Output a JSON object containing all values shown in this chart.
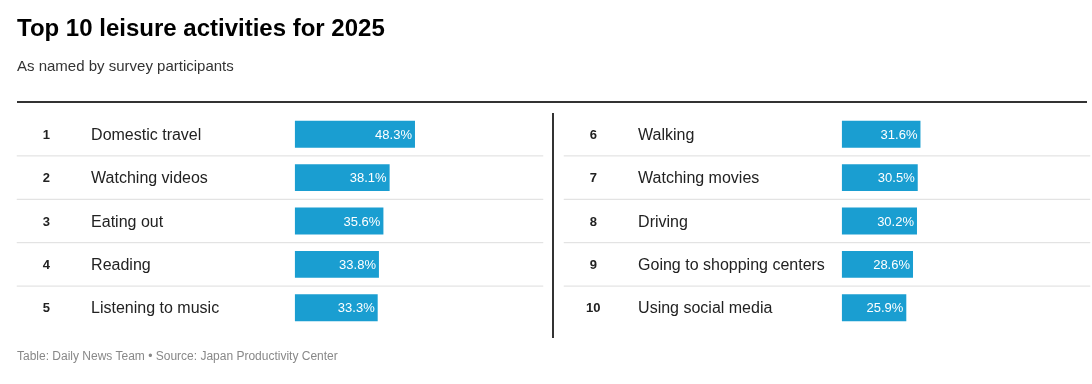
{
  "chart_data": [
    {
      "type": "bar",
      "orientation": "horizontal",
      "title": "Top 10 leisure activities for 2025",
      "subtitle": "As named by survey participants",
      "categories": [
        "Domestic travel",
        "Watching videos",
        "Eating out",
        "Reading",
        "Listening to music"
      ],
      "values": [
        48.3,
        38.1,
        35.6,
        33.8,
        33.3
      ],
      "color": "#1a9ed1",
      "value_labels": [
        "48.3%",
        "38.1%",
        "35.6%",
        "33.8%",
        "33.3%"
      ],
      "xlim": [
        0,
        100
      ],
      "tick_labels": false,
      "grid": false,
      "annotations": [
        "1",
        "2",
        "3",
        "4",
        "5"
      ]
    },
    {
      "type": "bar",
      "orientation": "horizontal",
      "categories": [
        "Walking",
        "Watching movies",
        "Driving",
        "Going to shopping centers",
        "Using social media"
      ],
      "values": [
        31.6,
        30.5,
        30.2,
        28.6,
        25.9
      ],
      "color": "#1a9ed1",
      "value_labels": [
        "31.6%",
        "30.5%",
        "30.2%",
        "28.6%",
        "25.9%"
      ],
      "xlim": [
        0,
        100
      ],
      "tick_labels": false,
      "grid": false,
      "annotations": [
        "6",
        "7",
        "8",
        "9",
        "10",
        "Table: Daily News Team • Source: Japan Productivity Center"
      ]
    }
  ]
}
